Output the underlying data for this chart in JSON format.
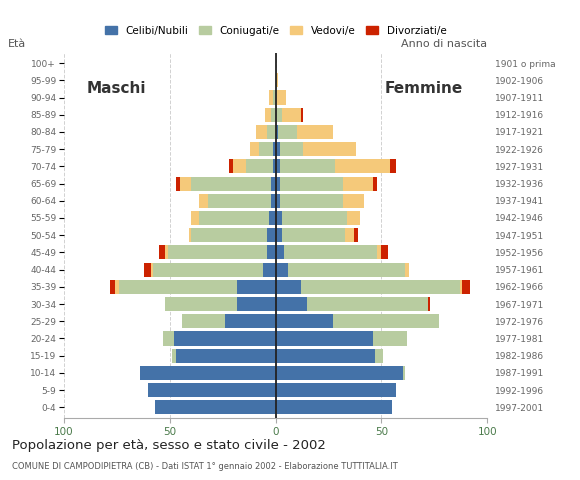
{
  "age_groups": [
    "0-4",
    "5-9",
    "10-14",
    "15-19",
    "20-24",
    "25-29",
    "30-34",
    "35-39",
    "40-44",
    "45-49",
    "50-54",
    "55-59",
    "60-64",
    "65-69",
    "70-74",
    "75-79",
    "80-84",
    "85-89",
    "90-94",
    "95-99",
    "100+"
  ],
  "birth_years": [
    "1997-2001",
    "1992-1996",
    "1987-1991",
    "1982-1986",
    "1977-1981",
    "1972-1976",
    "1967-1971",
    "1962-1966",
    "1957-1961",
    "1952-1956",
    "1947-1951",
    "1942-1946",
    "1937-1941",
    "1932-1936",
    "1927-1931",
    "1922-1926",
    "1917-1921",
    "1912-1916",
    "1907-1911",
    "1902-1906",
    "1901 o prima"
  ],
  "male": {
    "celibi": [
      57,
      60,
      64,
      47,
      48,
      24,
      18,
      18,
      6,
      4,
      4,
      3,
      2,
      2,
      1,
      1,
      0,
      0,
      0,
      0,
      0
    ],
    "coniugati": [
      0,
      0,
      0,
      2,
      5,
      20,
      34,
      56,
      52,
      47,
      36,
      33,
      30,
      38,
      13,
      7,
      4,
      2,
      1,
      0,
      0
    ],
    "vedovi": [
      0,
      0,
      0,
      0,
      0,
      0,
      0,
      2,
      1,
      1,
      1,
      4,
      4,
      5,
      6,
      4,
      5,
      3,
      2,
      0,
      0
    ],
    "divorziati": [
      0,
      0,
      0,
      0,
      0,
      0,
      0,
      2,
      3,
      3,
      0,
      0,
      0,
      2,
      2,
      0,
      0,
      0,
      0,
      0,
      0
    ]
  },
  "female": {
    "nubili": [
      55,
      57,
      60,
      47,
      46,
      27,
      15,
      12,
      6,
      4,
      3,
      3,
      2,
      2,
      2,
      2,
      1,
      0,
      0,
      0,
      0
    ],
    "coniugate": [
      0,
      0,
      1,
      4,
      16,
      50,
      57,
      75,
      55,
      44,
      30,
      31,
      30,
      30,
      26,
      11,
      9,
      3,
      0,
      0,
      0
    ],
    "vedove": [
      0,
      0,
      0,
      0,
      0,
      0,
      0,
      1,
      2,
      2,
      4,
      6,
      10,
      14,
      26,
      25,
      17,
      9,
      5,
      1,
      0
    ],
    "divorziate": [
      0,
      0,
      0,
      0,
      0,
      0,
      1,
      4,
      0,
      3,
      2,
      0,
      0,
      2,
      3,
      0,
      0,
      1,
      0,
      0,
      0
    ]
  },
  "colors": {
    "celibi": "#4472a8",
    "coniugati": "#b8cca0",
    "vedovi": "#f5c97a",
    "divorziati": "#cc2200"
  },
  "xlim": 100,
  "title": "Popolazione per età, sesso e stato civile - 2002",
  "subtitle": "COMUNE DI CAMPODIPIETRA (CB) - Dati ISTAT 1° gennaio 2002 - Elaborazione TUTTITALIA.IT",
  "legend_labels": [
    "Celibi/Nubili",
    "Coniugati/e",
    "Vedovi/e",
    "Divorziati/e"
  ],
  "xlabel_left": "Maschi",
  "xlabel_right": "Femmine",
  "ylabel": "Età",
  "ylabel_right": "Anno di nascita",
  "bg_color": "#ffffff",
  "grid_color": "#cccccc"
}
